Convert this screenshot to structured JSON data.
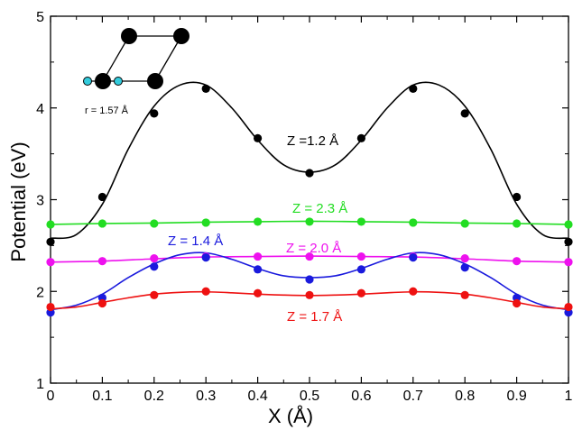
{
  "chart_data": {
    "type": "scatter",
    "xlabel": "X (Å)",
    "ylabel": "Potential (eV)",
    "xlim": [
      0,
      1
    ],
    "ylim": [
      1,
      5
    ],
    "xticks": [
      0,
      0.1,
      0.2,
      0.3,
      0.4,
      0.5,
      0.6,
      0.7,
      0.8,
      0.9,
      1
    ],
    "yticks": [
      1,
      2,
      3,
      4,
      5
    ],
    "x": [
      0,
      0.1,
      0.2,
      0.3,
      0.4,
      0.5,
      0.6,
      0.7,
      0.8,
      0.9,
      1.0
    ],
    "series": [
      {
        "name": "Z =1.2 Å",
        "color": "#000000",
        "values": [
          2.54,
          3.03,
          3.94,
          4.21,
          3.67,
          3.29,
          3.67,
          4.21,
          3.94,
          3.03,
          2.54
        ],
        "fit": [
          [
            0,
            2.58
          ],
          [
            0.05,
            2.62
          ],
          [
            0.1,
            2.95
          ],
          [
            0.15,
            3.55
          ],
          [
            0.2,
            4.02
          ],
          [
            0.25,
            4.25
          ],
          [
            0.3,
            4.25
          ],
          [
            0.35,
            4.0
          ],
          [
            0.4,
            3.65
          ],
          [
            0.45,
            3.38
          ],
          [
            0.5,
            3.3
          ],
          [
            0.55,
            3.38
          ],
          [
            0.6,
            3.65
          ],
          [
            0.65,
            4.0
          ],
          [
            0.7,
            4.25
          ],
          [
            0.75,
            4.25
          ],
          [
            0.8,
            4.02
          ],
          [
            0.85,
            3.55
          ],
          [
            0.9,
            2.95
          ],
          [
            0.95,
            2.62
          ],
          [
            1.0,
            2.58
          ]
        ]
      },
      {
        "name": "Z = 2.3 Å",
        "color": "#22dd22",
        "values": [
          2.73,
          2.74,
          2.74,
          2.75,
          2.76,
          2.76,
          2.76,
          2.75,
          2.74,
          2.74,
          2.73
        ],
        "fit": [
          [
            0,
            2.73
          ],
          [
            0.1,
            2.74
          ],
          [
            0.2,
            2.745
          ],
          [
            0.3,
            2.755
          ],
          [
            0.4,
            2.76
          ],
          [
            0.5,
            2.765
          ],
          [
            0.6,
            2.76
          ],
          [
            0.7,
            2.755
          ],
          [
            0.8,
            2.745
          ],
          [
            0.9,
            2.74
          ],
          [
            1.0,
            2.73
          ]
        ]
      },
      {
        "name": "Z = 2.0 Å",
        "color": "#ee11ee",
        "values": [
          2.32,
          2.33,
          2.36,
          2.38,
          2.38,
          2.38,
          2.38,
          2.38,
          2.36,
          2.33,
          2.32
        ],
        "fit": [
          [
            0,
            2.32
          ],
          [
            0.1,
            2.33
          ],
          [
            0.2,
            2.355
          ],
          [
            0.3,
            2.375
          ],
          [
            0.4,
            2.38
          ],
          [
            0.5,
            2.385
          ],
          [
            0.6,
            2.38
          ],
          [
            0.7,
            2.375
          ],
          [
            0.8,
            2.355
          ],
          [
            0.9,
            2.33
          ],
          [
            1.0,
            2.32
          ]
        ]
      },
      {
        "name": "Z = 1.4 Å",
        "color": "#1a1add",
        "values": [
          1.77,
          1.93,
          2.27,
          2.37,
          2.24,
          2.13,
          2.24,
          2.37,
          2.26,
          1.93,
          1.77
        ],
        "fit": [
          [
            0,
            1.8
          ],
          [
            0.05,
            1.85
          ],
          [
            0.1,
            1.97
          ],
          [
            0.15,
            2.15
          ],
          [
            0.2,
            2.3
          ],
          [
            0.25,
            2.4
          ],
          [
            0.3,
            2.42
          ],
          [
            0.35,
            2.35
          ],
          [
            0.4,
            2.25
          ],
          [
            0.45,
            2.17
          ],
          [
            0.5,
            2.15
          ],
          [
            0.55,
            2.17
          ],
          [
            0.6,
            2.25
          ],
          [
            0.65,
            2.35
          ],
          [
            0.7,
            2.42
          ],
          [
            0.75,
            2.4
          ],
          [
            0.8,
            2.3
          ],
          [
            0.85,
            2.15
          ],
          [
            0.9,
            1.97
          ],
          [
            0.95,
            1.85
          ],
          [
            1.0,
            1.8
          ]
        ]
      },
      {
        "name": "Z = 1.7 Å",
        "color": "#ee1111",
        "values": [
          1.83,
          1.87,
          1.96,
          2.0,
          1.98,
          1.96,
          1.98,
          2.0,
          1.96,
          1.87,
          1.83
        ],
        "fit": [
          [
            0,
            1.81
          ],
          [
            0.05,
            1.83
          ],
          [
            0.1,
            1.88
          ],
          [
            0.15,
            1.93
          ],
          [
            0.2,
            1.97
          ],
          [
            0.25,
            1.99
          ],
          [
            0.3,
            1.995
          ],
          [
            0.35,
            1.985
          ],
          [
            0.4,
            1.97
          ],
          [
            0.45,
            1.96
          ],
          [
            0.5,
            1.955
          ],
          [
            0.55,
            1.96
          ],
          [
            0.6,
            1.97
          ],
          [
            0.65,
            1.985
          ],
          [
            0.7,
            1.995
          ],
          [
            0.75,
            1.99
          ],
          [
            0.8,
            1.97
          ],
          [
            0.85,
            1.93
          ],
          [
            0.9,
            1.88
          ],
          [
            0.95,
            1.83
          ],
          [
            1.0,
            1.81
          ]
        ]
      }
    ],
    "inset": {
      "label": "r = 1.57 Å",
      "atom_color": "#000000",
      "small_atom_color": "#33ccdd"
    },
    "grid": false,
    "legend": "none"
  }
}
